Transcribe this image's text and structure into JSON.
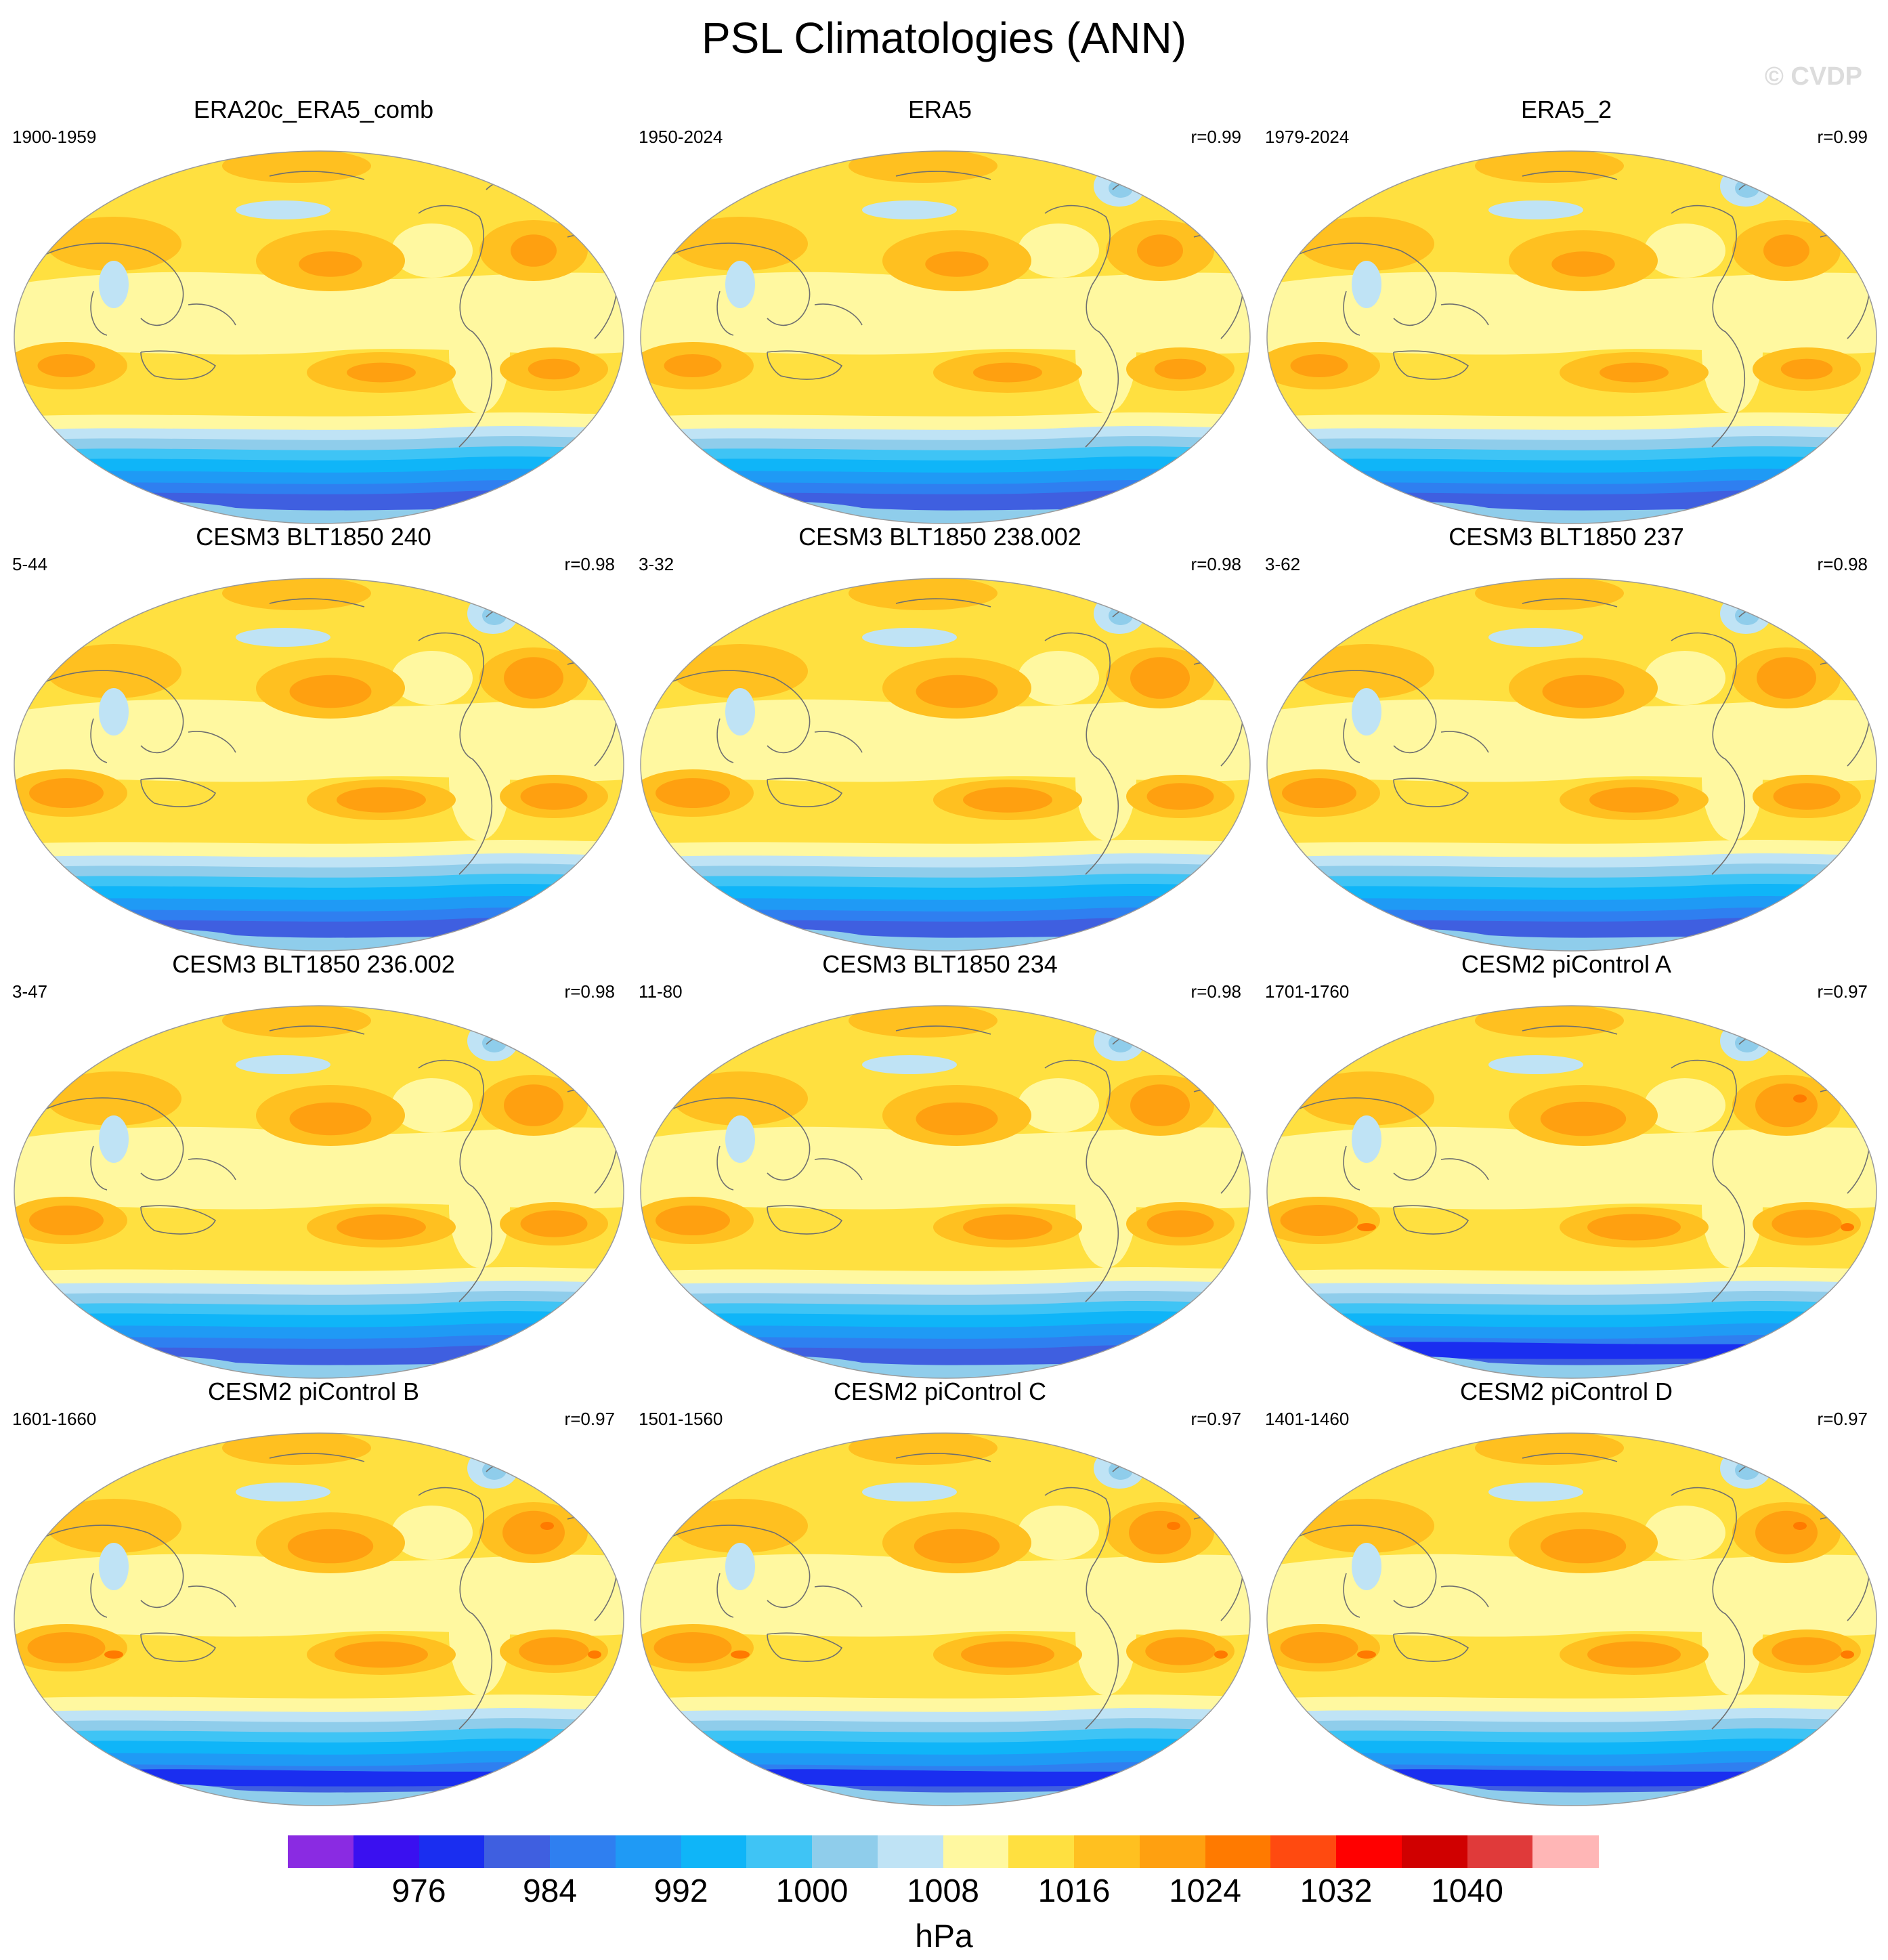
{
  "figure": {
    "title": "PSL Climatologies (ANN)",
    "watermark": "© CVDP",
    "units": "hPa"
  },
  "colorbar": {
    "colors": [
      "#8a2be2",
      "#3a10f0",
      "#1a2ef0",
      "#3f5fe0",
      "#2f7ff0",
      "#1f9af5",
      "#0fb5f8",
      "#3fc4f5",
      "#8fcdeb",
      "#bfe3f5",
      "#fff8a0",
      "#ffe040",
      "#ffc020",
      "#ffa010",
      "#ff7a00",
      "#ff4a10",
      "#ff0000",
      "#d00000",
      "#e03a3a",
      "#ffb6b6"
    ],
    "ticks": [
      "976",
      "984",
      "992",
      "1000",
      "1008",
      "1016",
      "1024",
      "1032",
      "1040"
    ],
    "tick_boundaries": [
      2,
      4,
      6,
      8,
      10,
      12,
      14,
      16,
      18
    ]
  },
  "panels": [
    {
      "title": "ERA20c_ERA5_comb",
      "years": "1900-1959",
      "corr": "",
      "variant": "obs20c"
    },
    {
      "title": "ERA5",
      "years": "1950-2024",
      "corr": "r=0.99",
      "variant": "obs"
    },
    {
      "title": "ERA5_2",
      "years": "1979-2024",
      "corr": "r=0.99",
      "variant": "obs"
    },
    {
      "title": "CESM3 BLT1850 240",
      "years": "5-44",
      "corr": "r=0.98",
      "variant": "cesm3"
    },
    {
      "title": "CESM3 BLT1850 238.002",
      "years": "3-32",
      "corr": "r=0.98",
      "variant": "cesm3"
    },
    {
      "title": "CESM3 BLT1850 237",
      "years": "3-62",
      "corr": "r=0.98",
      "variant": "cesm3"
    },
    {
      "title": "CESM3 BLT1850 236.002",
      "years": "3-47",
      "corr": "r=0.98",
      "variant": "cesm3"
    },
    {
      "title": "CESM3 BLT1850 234",
      "years": "11-80",
      "corr": "r=0.98",
      "variant": "cesm3"
    },
    {
      "title": "CESM2 piControl A",
      "years": "1701-1760",
      "corr": "r=0.97",
      "variant": "cesm2"
    },
    {
      "title": "CESM2 piControl B",
      "years": "1601-1660",
      "corr": "r=0.97",
      "variant": "cesm2"
    },
    {
      "title": "CESM2 piControl C",
      "years": "1501-1560",
      "corr": "r=0.97",
      "variant": "cesm2"
    },
    {
      "title": "CESM2 piControl D",
      "years": "1401-1460",
      "corr": "r=0.97",
      "variant": "cesm2"
    }
  ]
}
